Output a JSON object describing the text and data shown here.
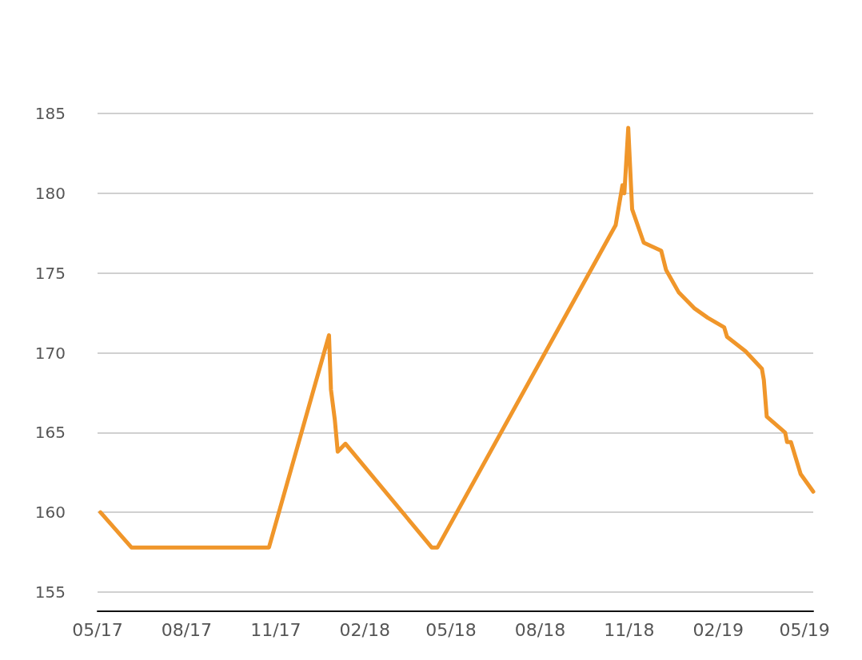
{
  "chart_data": {
    "type": "line",
    "x": [
      "2017-05-04",
      "2017-06-05",
      "2017-10-25",
      "2017-12-26",
      "2017-12-28",
      "2018-01-01",
      "2018-01-04",
      "2018-01-12",
      "2018-04-11",
      "2018-04-17",
      "2018-10-18",
      "2018-10-25",
      "2018-10-27",
      "2018-10-31",
      "2018-11-04",
      "2018-11-12",
      "2018-11-16",
      "2018-12-04",
      "2018-12-09",
      "2018-12-22",
      "2019-01-07",
      "2019-01-21",
      "2019-02-07",
      "2019-02-10",
      "2019-03-01",
      "2019-03-18",
      "2019-03-20",
      "2019-03-23",
      "2019-04-11",
      "2019-04-13",
      "2019-04-17",
      "2019-04-27",
      "2019-05-10"
    ],
    "series": [
      {
        "color": "#f0962a",
        "values": [
          160.0,
          157.8,
          157.8,
          171.1,
          167.7,
          165.8,
          163.8,
          164.3,
          157.8,
          157.8,
          178.0,
          180.5,
          180.0,
          184.1,
          179.0,
          177.6,
          176.9,
          176.4,
          175.2,
          173.8,
          172.8,
          172.2,
          171.6,
          171.0,
          170.1,
          169.0,
          168.3,
          166.0,
          165.0,
          164.4,
          164.4,
          162.4,
          161.3
        ]
      }
    ],
    "xlim": [
      "2017-05-01",
      "2019-05-10"
    ],
    "xticks": [
      {
        "value": "2017-05",
        "label": "05/17"
      },
      {
        "value": "2017-08",
        "label": "08/17"
      },
      {
        "value": "2017-11",
        "label": "11/17"
      },
      {
        "value": "2018-02",
        "label": "02/18"
      },
      {
        "value": "2018-05",
        "label": "05/18"
      },
      {
        "value": "2018-08",
        "label": "08/18"
      },
      {
        "value": "2018-11",
        "label": "11/18"
      },
      {
        "value": "2019-02",
        "label": "02/19"
      },
      {
        "value": "2019-05",
        "label": "05/19"
      }
    ],
    "ylim": [
      153.8,
      185
    ],
    "yticks": [
      155,
      160,
      165,
      170,
      175,
      180,
      185
    ],
    "grid": "y",
    "marker": "none",
    "line_style": "solid"
  }
}
